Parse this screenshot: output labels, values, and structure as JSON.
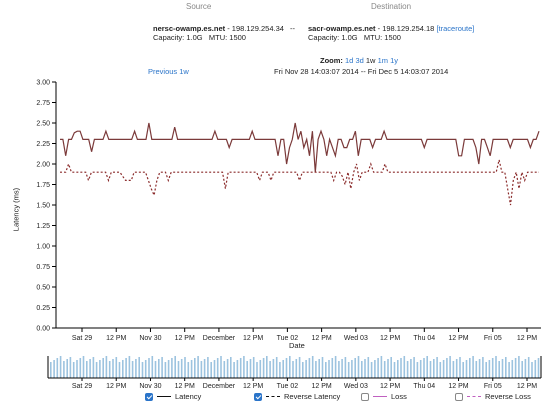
{
  "header": {
    "source_label": "Source",
    "destination_label": "Destination",
    "source": {
      "host": "nersc-owamp.es.net",
      "ip": "- 198.129.254.34",
      "capacity": "Capacity: 1.0G",
      "mtu": "MTU: 1500"
    },
    "arrow": "--",
    "destination": {
      "host": "sacr-owamp.es.net",
      "ip": "- 198.129.254.18",
      "traceroute": "[traceroute]",
      "capacity": "Capacity: 1.0G",
      "mtu": "MTU: 1500"
    }
  },
  "zoom": {
    "label": "Zoom:",
    "options": [
      "1d",
      "3d",
      "1w",
      "1m",
      "1y"
    ],
    "selected": "1w"
  },
  "nav": {
    "previous": "Previous 1w",
    "range": "Fri Nov 28 14:03:07 2014 -- Fri Dec 5 14:03:07 2014"
  },
  "legend": {
    "latency": "Latency",
    "reverse_latency": "Reverse Latency",
    "loss": "Loss",
    "reverse_loss": "Reverse Loss",
    "checked": {
      "latency": true,
      "reverse_latency": true,
      "loss": false,
      "reverse_loss": false
    }
  },
  "colors": {
    "latency": "#7b3a3a",
    "reverse_latency": "#8a2a2a",
    "loss": "#c060c0",
    "brush_bars": "#9cc3df",
    "link": "#2a74c9"
  },
  "chart_data": {
    "type": "line",
    "xlabel": "Date",
    "ylabel": "Latency (ms)",
    "ylim": [
      0,
      3
    ],
    "yticks": [
      "0.00",
      "0.25",
      "0.50",
      "0.75",
      "1.00",
      "1.25",
      "1.50",
      "1.75",
      "2.00",
      "2.25",
      "2.50",
      "2.75",
      "3.00"
    ],
    "x_ticks": [
      "Sat 29",
      "12 PM",
      "Nov 30",
      "12 PM",
      "December",
      "12 PM",
      "Tue 02",
      "12 PM",
      "Wed 03",
      "12 PM",
      "Thu 04",
      "12 PM",
      "Fri 05",
      "12 PM"
    ],
    "xlim": [
      0,
      168
    ],
    "grid": false,
    "series": [
      {
        "name": "Latency",
        "values": [
          2.3,
          2.3,
          2.1,
          2.3,
          2.3,
          2.38,
          2.4,
          2.4,
          2.3,
          2.3,
          2.3,
          2.15,
          2.3,
          2.3,
          2.3,
          2.3,
          2.4,
          2.3,
          2.3,
          2.3,
          2.3,
          2.3,
          2.3,
          2.3,
          2.3,
          2.3,
          2.4,
          2.3,
          2.3,
          2.3,
          2.3,
          2.5,
          2.3,
          2.3,
          2.3,
          2.3,
          2.3,
          2.3,
          2.3,
          2.3,
          2.45,
          2.3,
          2.3,
          2.3,
          2.3,
          2.3,
          2.3,
          2.3,
          2.3,
          2.3,
          2.3,
          2.3,
          2.3,
          2.3,
          2.4,
          2.3,
          2.3,
          2.3,
          2.3,
          2.2,
          2.3,
          2.3,
          2.3,
          2.3,
          2.3,
          2.3,
          2.3,
          2.4,
          2.3,
          2.3,
          2.3,
          2.3,
          2.3,
          2.3,
          2.3,
          2.3,
          2.1,
          2.3,
          2.3,
          2.0,
          2.2,
          2.3,
          2.5,
          2.3,
          2.4,
          2.2,
          2.3,
          2.1,
          2.4,
          1.9,
          2.3,
          2.4,
          2.3,
          2.1,
          2.3,
          2.2,
          2.1,
          2.3,
          2.3,
          2.2,
          2.2,
          2.3,
          2.3,
          2.4,
          2.1,
          2.3,
          2.3,
          2.3,
          2.3,
          2.2,
          2.3,
          2.3,
          2.3,
          2.4,
          2.3,
          2.3,
          2.3,
          2.3,
          2.3,
          2.3,
          2.3,
          2.3,
          2.3,
          2.3,
          2.3,
          2.3,
          2.3,
          2.2,
          2.3,
          2.3,
          2.3,
          2.3,
          2.3,
          2.3,
          2.3,
          2.3,
          2.3,
          2.3,
          2.3,
          2.1,
          2.1,
          2.3,
          2.3,
          2.3,
          2.3,
          2.2,
          2.0,
          2.3,
          2.3,
          2.2,
          2.1,
          2.3,
          2.3,
          2.3,
          2.3,
          2.3,
          2.3,
          2.2,
          2.3,
          2.3,
          2.3,
          2.3,
          2.3,
          2.3,
          2.2,
          2.3,
          2.3,
          2.4
        ]
      },
      {
        "name": "Reverse Latency",
        "values": [
          1.9,
          1.9,
          1.9,
          2.0,
          1.9,
          1.9,
          1.9,
          1.9,
          1.9,
          1.9,
          1.8,
          1.9,
          1.9,
          1.9,
          1.9,
          1.9,
          1.9,
          1.8,
          1.9,
          1.9,
          1.9,
          1.9,
          1.85,
          1.8,
          1.8,
          1.8,
          1.9,
          1.9,
          1.9,
          1.9,
          1.9,
          1.8,
          1.7,
          1.62,
          1.8,
          1.9,
          1.9,
          1.9,
          1.8,
          1.9,
          1.9,
          1.9,
          1.9,
          1.9,
          1.9,
          1.9,
          1.9,
          1.9,
          1.9,
          1.9,
          1.9,
          1.9,
          1.9,
          1.9,
          1.9,
          1.9,
          1.9,
          1.9,
          1.7,
          1.9,
          1.9,
          1.9,
          1.9,
          1.9,
          1.9,
          1.9,
          1.9,
          1.9,
          1.9,
          1.9,
          1.8,
          1.9,
          1.9,
          1.9,
          1.8,
          1.9,
          1.9,
          1.9,
          1.9,
          1.9,
          1.9,
          1.9,
          1.9,
          1.9,
          1.8,
          1.9,
          1.9,
          1.9,
          1.9,
          1.9,
          1.9,
          1.9,
          1.9,
          1.9,
          1.9,
          1.9,
          1.8,
          1.9,
          1.9,
          1.85,
          1.75,
          1.9,
          1.7,
          1.9,
          2.0,
          1.8,
          1.9,
          1.9,
          1.9,
          2.0,
          1.9,
          1.9,
          1.9,
          1.9,
          2.0,
          1.9,
          1.9,
          1.9,
          1.9,
          1.9,
          1.9,
          1.9,
          1.9,
          1.9,
          1.9,
          1.9,
          1.9,
          1.9,
          1.9,
          1.9,
          1.9,
          1.9,
          1.9,
          1.9,
          1.9,
          1.9,
          1.9,
          1.9,
          1.9,
          1.9,
          1.9,
          1.9,
          1.9,
          1.9,
          1.9,
          1.9,
          1.9,
          1.9,
          1.9,
          1.9,
          1.9,
          1.9,
          1.9,
          1.9,
          2.05,
          1.9,
          1.9,
          1.7,
          1.5,
          1.8,
          1.9,
          1.7,
          1.9,
          1.8,
          1.9,
          1.9,
          1.9,
          1.9,
          1.9
        ]
      }
    ],
    "brush": {
      "type": "bar",
      "description": "overview timeline with per-sample bars"
    }
  }
}
